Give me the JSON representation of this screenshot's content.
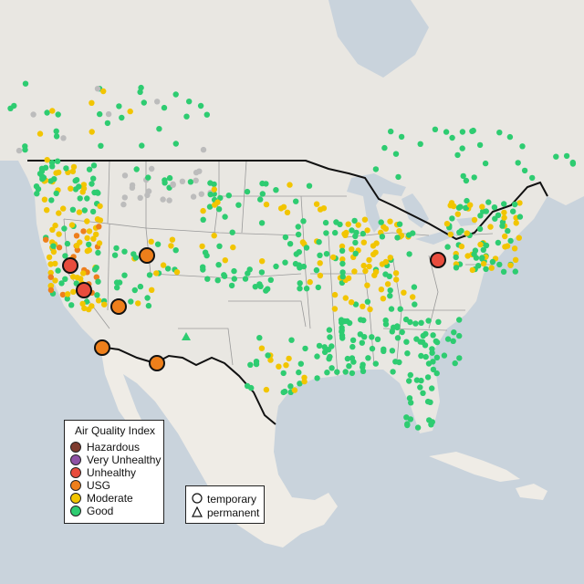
{
  "legend": {
    "title": "Air Quality Index",
    "items": [
      {
        "label": "Hazardous",
        "color": "#7e3b2e"
      },
      {
        "label": "Very Unhealthy",
        "color": "#8e52a5"
      },
      {
        "label": "Unhealthy",
        "color": "#e84c3d"
      },
      {
        "label": "USG",
        "color": "#ee7f1b"
      },
      {
        "label": "Moderate",
        "color": "#f2c500"
      },
      {
        "label": "Good",
        "color": "#2ecc71"
      }
    ]
  },
  "shape_legend": {
    "items": [
      {
        "label": "temporary",
        "shape": "circle-icon"
      },
      {
        "label": "permanent",
        "shape": "triangle-icon"
      }
    ]
  },
  "colors": {
    "water": "#c9d3dc",
    "land": "#e9e7e2",
    "mexico": "#efece6",
    "state_line": "#9a9a9a",
    "border": "#111111",
    "no_data": "#bcbcbc"
  }
}
